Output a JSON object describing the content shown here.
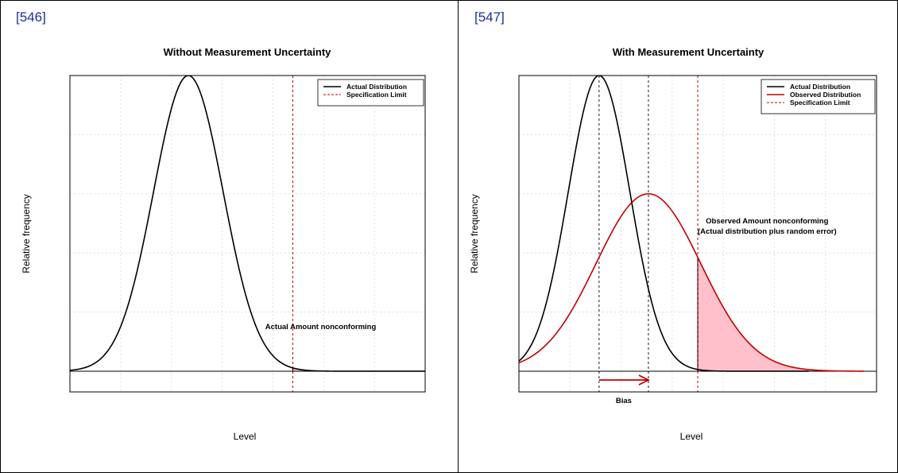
{
  "page": {
    "figures": [
      {
        "number": "[546]"
      },
      {
        "number": "[547]"
      }
    ]
  },
  "colors": {
    "actual": "#000000",
    "observed": "#c00000",
    "spec_limit": "#c00000",
    "fill": "#ffc0cb",
    "grid": "#d6d6d6",
    "frame_border": "#000000",
    "figure_number": "#1f2f9e"
  },
  "chart_data": [
    {
      "type": "line",
      "title": "Without Measurement Uncertainty",
      "xlabel": "Level",
      "ylabel": "Relative frequency",
      "xlim": [
        -3.4,
        6.8
      ],
      "ylim": [
        -0.07,
        1.0
      ],
      "grid": true,
      "legend_position": "top-right",
      "series": [
        {
          "name": "Actual Distribution",
          "kind": "normal",
          "mean": 0,
          "sd": 1,
          "x_from": -3.4,
          "x_to": 7.8
        }
      ],
      "spec_limit": {
        "name": "Specification Limit",
        "x": 3.0
      },
      "shaded_region": {
        "from": 3.0,
        "to": 7.8,
        "series": "Actual Distribution"
      },
      "annotations": [
        {
          "text": "Actual Amount nonconforming",
          "x": 3.8,
          "y": 0.142
        }
      ],
      "tick_labels": []
    },
    {
      "type": "line",
      "title": "With Measurement Uncertainty",
      "xlabel": "Level",
      "ylabel": "Relative frequency",
      "xlim": [
        -2.6,
        9.0
      ],
      "ylim": [
        -0.07,
        1.0
      ],
      "grid": true,
      "legend_position": "top-right",
      "series": [
        {
          "name": "Actual Distribution",
          "kind": "normal",
          "mean": 0,
          "sd": 1,
          "x_from": -2.6,
          "x_to": 6.8
        },
        {
          "name": "Observed Distribution",
          "kind": "normal",
          "mean": 1.6,
          "sd": 1.7,
          "x_from": -2.6,
          "x_to": 8.6,
          "peak": 0.6
        }
      ],
      "spec_limit": {
        "name": "Specification Limit",
        "x": 3.2
      },
      "reference_lines": [
        0,
        1.6
      ],
      "shaded_region": {
        "from": 3.2,
        "to": 8.6,
        "series": "Observed Distribution"
      },
      "bias_arrow": {
        "from": 0,
        "to": 1.6,
        "label": "Bias"
      },
      "annotations": [
        {
          "text": "Observed Amount nonconforming",
          "x": 5.45,
          "y": 0.5
        },
        {
          "text": "(Actual distribution plus random error)",
          "x": 5.45,
          "y": 0.465
        }
      ],
      "tick_labels": []
    }
  ]
}
